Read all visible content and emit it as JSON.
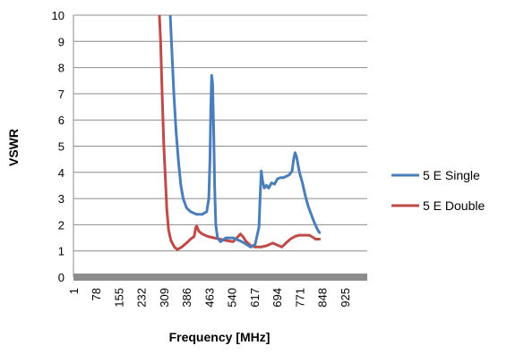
{
  "chart_data": {
    "type": "line",
    "xlabel": "Frequency [MHz]",
    "ylabel": "VSWR",
    "xlim": [
      1,
      1002
    ],
    "ylim": [
      0,
      10
    ],
    "x_ticks": [
      "1",
      "78",
      "155",
      "232",
      "309",
      "386",
      "463",
      "540",
      "617",
      "694",
      "771",
      "848",
      "925"
    ],
    "y_ticks": [
      "0",
      "1",
      "2",
      "3",
      "4",
      "5",
      "6",
      "7",
      "8",
      "9",
      "10"
    ],
    "grid": "horizontal",
    "legend_position": "right",
    "series": [
      {
        "name": "5 E Single",
        "color": "#4A7EBB",
        "points": [
          [
            330,
            10.2
          ],
          [
            335,
            9.0
          ],
          [
            343,
            7.0
          ],
          [
            351,
            5.5
          ],
          [
            359,
            4.4
          ],
          [
            367,
            3.5
          ],
          [
            375,
            3.0
          ],
          [
            386,
            2.65
          ],
          [
            400,
            2.5
          ],
          [
            420,
            2.4
          ],
          [
            440,
            2.4
          ],
          [
            455,
            2.5
          ],
          [
            462,
            3.0
          ],
          [
            466,
            4.5
          ],
          [
            469,
            6.5
          ],
          [
            472,
            7.7
          ],
          [
            475,
            7.4
          ],
          [
            479,
            5.5
          ],
          [
            482,
            3.5
          ],
          [
            486,
            2.0
          ],
          [
            492,
            1.5
          ],
          [
            502,
            1.35
          ],
          [
            520,
            1.5
          ],
          [
            545,
            1.5
          ],
          [
            575,
            1.35
          ],
          [
            590,
            1.25
          ],
          [
            605,
            1.15
          ],
          [
            620,
            1.25
          ],
          [
            633,
            1.9
          ],
          [
            638,
            3.3
          ],
          [
            641,
            4.05
          ],
          [
            645,
            3.7
          ],
          [
            651,
            3.4
          ],
          [
            659,
            3.5
          ],
          [
            666,
            3.4
          ],
          [
            676,
            3.6
          ],
          [
            686,
            3.55
          ],
          [
            696,
            3.75
          ],
          [
            706,
            3.8
          ],
          [
            716,
            3.8
          ],
          [
            726,
            3.85
          ],
          [
            736,
            3.9
          ],
          [
            746,
            4.05
          ],
          [
            751,
            4.5
          ],
          [
            756,
            4.75
          ],
          [
            761,
            4.6
          ],
          [
            771,
            4.0
          ],
          [
            781,
            3.6
          ],
          [
            791,
            3.1
          ],
          [
            801,
            2.7
          ],
          [
            811,
            2.4
          ],
          [
            821,
            2.1
          ],
          [
            831,
            1.85
          ],
          [
            839,
            1.7
          ]
        ]
      },
      {
        "name": "5 E Double",
        "color": "#BE4B48",
        "points": [
          [
            293,
            10.2
          ],
          [
            298,
            9.0
          ],
          [
            303,
            7.0
          ],
          [
            309,
            5.0
          ],
          [
            314,
            3.8
          ],
          [
            319,
            2.6
          ],
          [
            325,
            1.8
          ],
          [
            333,
            1.4
          ],
          [
            345,
            1.15
          ],
          [
            355,
            1.05
          ],
          [
            370,
            1.15
          ],
          [
            386,
            1.3
          ],
          [
            400,
            1.45
          ],
          [
            412,
            1.55
          ],
          [
            418,
            1.9
          ],
          [
            421,
            1.95
          ],
          [
            428,
            1.75
          ],
          [
            440,
            1.65
          ],
          [
            460,
            1.55
          ],
          [
            480,
            1.5
          ],
          [
            500,
            1.45
          ],
          [
            520,
            1.4
          ],
          [
            545,
            1.35
          ],
          [
            562,
            1.55
          ],
          [
            570,
            1.65
          ],
          [
            578,
            1.55
          ],
          [
            590,
            1.35
          ],
          [
            605,
            1.2
          ],
          [
            620,
            1.15
          ],
          [
            640,
            1.15
          ],
          [
            660,
            1.2
          ],
          [
            680,
            1.3
          ],
          [
            690,
            1.25
          ],
          [
            700,
            1.2
          ],
          [
            711,
            1.15
          ],
          [
            725,
            1.3
          ],
          [
            740,
            1.45
          ],
          [
            755,
            1.55
          ],
          [
            770,
            1.6
          ],
          [
            785,
            1.6
          ],
          [
            805,
            1.6
          ],
          [
            820,
            1.5
          ],
          [
            826,
            1.45
          ],
          [
            839,
            1.45
          ]
        ]
      }
    ]
  }
}
